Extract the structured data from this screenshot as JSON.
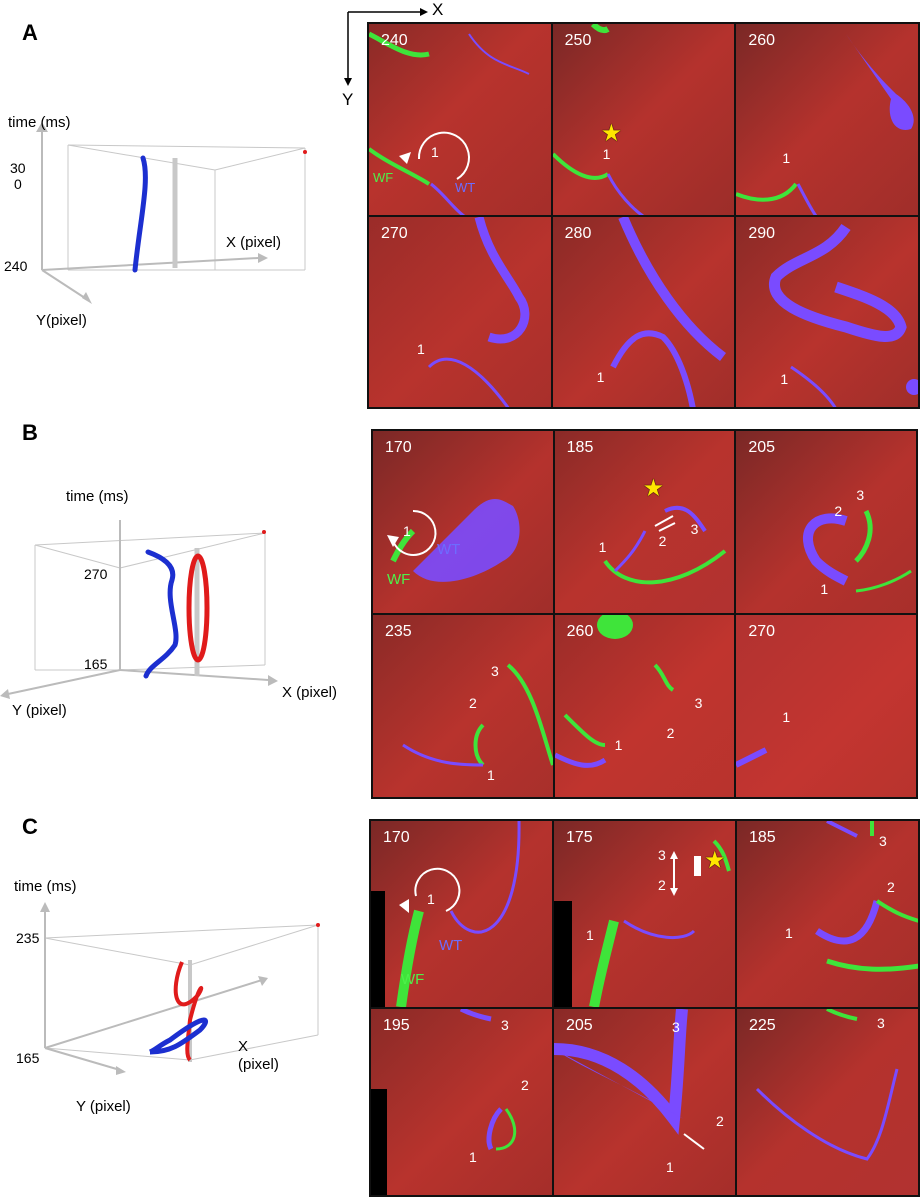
{
  "panels": {
    "A": {
      "letter": "A",
      "plot": {
        "time_label": "time (ms)",
        "t_top_1": "30",
        "t_top_2": "0",
        "t_bottom": "240",
        "x_label": "X (pixel)",
        "y_label": "Y(pixel)"
      },
      "axes_key": {
        "x": "X",
        "y": "Y"
      },
      "frames": [
        {
          "time": "240",
          "markers": [
            "1"
          ],
          "wf": "WF",
          "wt": "WT"
        },
        {
          "time": "250",
          "markers": [
            "1"
          ]
        },
        {
          "time": "260",
          "markers": [
            "1"
          ]
        },
        {
          "time": "270",
          "markers": [
            "1"
          ]
        },
        {
          "time": "280",
          "markers": [
            "1"
          ]
        },
        {
          "time": "290",
          "markers": [
            "1"
          ]
        }
      ]
    },
    "B": {
      "letter": "B",
      "plot": {
        "time_label": "time (ms)",
        "t_top": "270",
        "t_bottom": "165",
        "x_label": "X (pixel)",
        "y_label": "Y (pixel)"
      },
      "frames": [
        {
          "time": "170",
          "markers": [
            "1"
          ],
          "wf": "WF",
          "wt": "WT"
        },
        {
          "time": "185",
          "markers": [
            "1",
            "2",
            "3"
          ]
        },
        {
          "time": "205",
          "markers": [
            "1",
            "2",
            "3"
          ]
        },
        {
          "time": "235",
          "markers": [
            "1",
            "2",
            "3"
          ]
        },
        {
          "time": "260",
          "markers": [
            "1",
            "2",
            "3"
          ]
        },
        {
          "time": "270",
          "markers": [
            "1"
          ]
        }
      ]
    },
    "C": {
      "letter": "C",
      "plot": {
        "time_label": "time (ms)",
        "t_top": "235",
        "t_bottom": "165",
        "x_label_1": "X",
        "x_label_2": "(pixel)",
        "y_label": "Y (pixel)"
      },
      "frames": [
        {
          "time": "170",
          "markers": [
            "1"
          ],
          "wf": "WF",
          "wt": "WT"
        },
        {
          "time": "175",
          "markers": [
            "1",
            "2",
            "3"
          ]
        },
        {
          "time": "185",
          "markers": [
            "1",
            "2",
            "3"
          ]
        },
        {
          "time": "195",
          "markers": [
            "1",
            "2",
            "3"
          ]
        },
        {
          "time": "205",
          "markers": [
            "1",
            "2",
            "3"
          ]
        },
        {
          "time": "225",
          "markers": [
            "3"
          ]
        }
      ]
    }
  },
  "colors": {
    "tissue": "#c0312c",
    "tissue_dark": "#7d2b2a",
    "wave_front": "#3fe43a",
    "wave_tail": "#7a4bff",
    "filament_1": "#1c2fd0",
    "filament_2": "#e01b1b",
    "reference": "#c8c8c8",
    "star": "#ffe600"
  }
}
